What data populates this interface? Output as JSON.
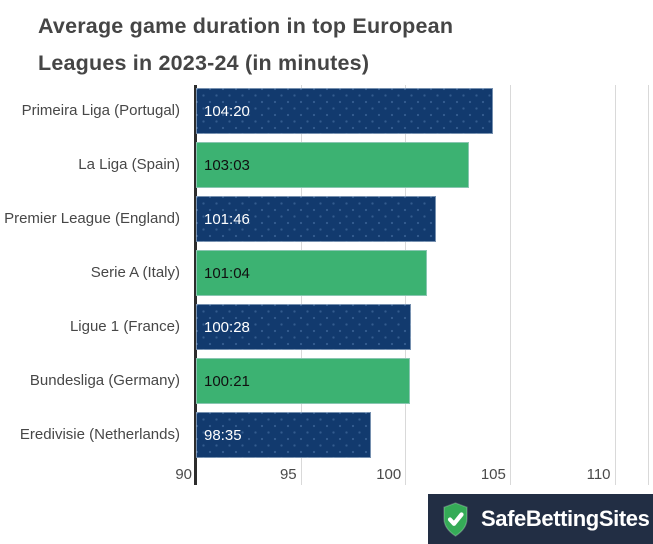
{
  "title": {
    "line1": "Average game duration in top European",
    "line2": "Leagues in 2023-24 (in minutes)"
  },
  "chart_data": {
    "type": "bar",
    "orientation": "horizontal",
    "title": "Average game duration in top European Leagues in 2023-24 (in minutes)",
    "categories": [
      "Primeira Liga (Portugal)",
      "La Liga (Spain)",
      "Premier League (England)",
      "Serie A (Italy)",
      "Ligue 1 (France)",
      "Bundesliga (Germany)",
      "Eredivisie (Netherlands)"
    ],
    "value_labels": [
      "104:20",
      "103:03",
      "101:46",
      "101:04",
      "100:28",
      "100:21",
      "98:35"
    ],
    "values": [
      104.2,
      103.03,
      101.46,
      101.04,
      100.28,
      100.21,
      98.35
    ],
    "xlim": [
      90,
      111.6
    ],
    "xticks": [
      90,
      95,
      100,
      105,
      110
    ],
    "grid": true,
    "legend": "none",
    "bar_colors_alternating": [
      "#123a6e",
      "#3cb272"
    ]
  },
  "colors": {
    "navy_bar": "#123a6e",
    "green_bar": "#3cb272",
    "axis_line": "#2d2d2d",
    "gridline": "#d9d9d9",
    "title_text": "#454545",
    "logo_background": "#222e44",
    "shield_green": "#35ab57"
  },
  "footer": {
    "brand": "SafeBettingSites"
  }
}
